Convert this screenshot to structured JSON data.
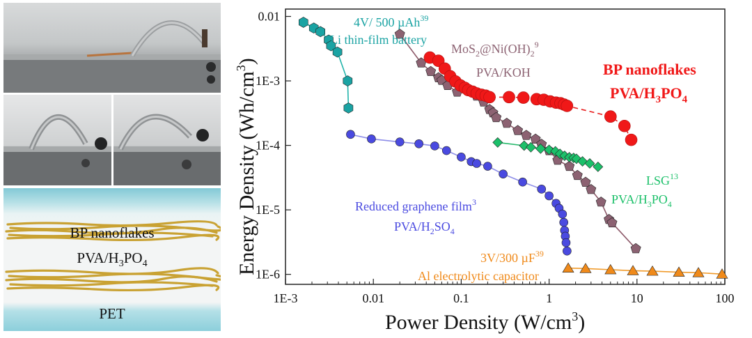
{
  "device": {
    "layer_top": "BP nanoflakes",
    "layer_mid": "PVA/H3PO4",
    "layer_bottom": "PET"
  },
  "chart_data": {
    "type": "scatter",
    "xlabel": "Power Density (W/cm3)",
    "ylabel": "Energy Density (Wh/cm3)",
    "xscale": "log",
    "yscale": "log",
    "xlim": [
      0.001,
      100
    ],
    "ylim": [
      7e-07,
      0.013
    ],
    "xticks": [
      {
        "value": 0.001,
        "label": "1E-3"
      },
      {
        "value": 0.01,
        "label": "0.01"
      },
      {
        "value": 0.1,
        "label": "0.1"
      },
      {
        "value": 1,
        "label": "1"
      },
      {
        "value": 10,
        "label": "10"
      },
      {
        "value": 100,
        "label": "100"
      }
    ],
    "yticks": [
      {
        "value": 1e-06,
        "label": "1E-6"
      },
      {
        "value": 1e-05,
        "label": "1E-5"
      },
      {
        "value": 0.0001,
        "label": "1E-4"
      },
      {
        "value": 0.001,
        "label": "1E-3"
      },
      {
        "value": 0.01,
        "label": "0.01"
      }
    ],
    "series": [
      {
        "key": "li",
        "label_lines": [
          "4V/ 500 µAh39",
          "Li thin-film battery"
        ],
        "color": "#1aa3a3",
        "line_color": "#22b3aa",
        "marker": "hexagon",
        "x": [
          0.0016,
          0.0021,
          0.0025,
          0.0031,
          0.0033,
          0.0039,
          0.0051,
          0.0052
        ],
        "y": [
          0.0081,
          0.0066,
          0.0058,
          0.0043,
          0.0035,
          0.0028,
          0.001,
          0.00038
        ]
      },
      {
        "key": "mos2",
        "label_lines": [
          "MoS2@Ni(OH)29",
          "PVA/KOH"
        ],
        "color": "#8c6272",
        "line_color": "#8c5868",
        "marker": "pentagon",
        "x": [
          0.02,
          0.035,
          0.045,
          0.055,
          0.06,
          0.07,
          0.09,
          0.12,
          0.15,
          0.18,
          0.21,
          0.23,
          0.25,
          0.33,
          0.44,
          0.55,
          0.7,
          0.82,
          1.0,
          1.25,
          1.7,
          2.1,
          2.6,
          3.0,
          3.9,
          4.8,
          5.2,
          9.7
        ],
        "y": [
          0.0053,
          0.0019,
          0.0014,
          0.00112,
          0.00102,
          0.00085,
          0.00067,
          0.0007,
          0.00058,
          0.00047,
          0.00036,
          0.00032,
          0.00027,
          0.00022,
          0.00017,
          0.000143,
          0.000125,
          0.000104,
          8.3e-05,
          5.9e-05,
          4.73e-05,
          3.42e-05,
          2.68e-05,
          2.07e-05,
          1.32e-05,
          7.1e-06,
          6.3e-06,
          2.5e-06
        ]
      },
      {
        "key": "bp",
        "label_lines": [
          "BP nanoflakes",
          "PVA/H3PO4"
        ],
        "color": "#f01818",
        "line_color": "#e81e1e",
        "marker": "circle",
        "x": [
          0.044,
          0.055,
          0.065,
          0.075,
          0.086,
          0.098,
          0.11,
          0.12,
          0.135,
          0.15,
          0.17,
          0.19,
          0.21,
          0.35,
          0.51,
          0.72,
          0.87,
          1.03,
          1.2,
          1.35,
          1.48,
          1.6,
          5.0,
          7.2,
          8.6
        ],
        "y": [
          0.0023,
          0.00205,
          0.00155,
          0.00118,
          0.00098,
          0.00085,
          0.00078,
          0.00072,
          0.00068,
          0.00064,
          0.00061,
          0.00059,
          0.00056,
          0.00056,
          0.00055,
          0.00052,
          0.00051,
          0.00048,
          0.00046,
          0.00045,
          0.00043,
          0.00041,
          0.00028,
          0.0002,
          0.000122
        ]
      },
      {
        "key": "lsg",
        "label_lines": [
          "LSG13",
          "PVA/H3PO4"
        ],
        "color": "#1cc06a",
        "line_color": "#24b86a",
        "marker": "diamond",
        "x": [
          0.26,
          0.52,
          0.62,
          0.8,
          1.0,
          1.18,
          1.33,
          1.5,
          1.7,
          1.9,
          2.05,
          2.4,
          2.9,
          3.6
        ],
        "y": [
          0.000111,
          9.9e-05,
          9.35e-05,
          8.9e-05,
          8.55e-05,
          8.1e-05,
          7.4e-05,
          6.9e-05,
          6.55e-05,
          6.4e-05,
          6.2e-05,
          5.65e-05,
          5.25e-05,
          4.65e-05
        ]
      },
      {
        "key": "rgo",
        "label_lines": [
          "Reduced graphene film3",
          "PVA/H2SO4"
        ],
        "color": "#4a4ae0",
        "line_color": "#8c8ce8",
        "marker": "circle-sm",
        "x": [
          0.0055,
          0.0095,
          0.02,
          0.033,
          0.05,
          0.068,
          0.1,
          0.13,
          0.15,
          0.2,
          0.3,
          0.5,
          0.82,
          1.0,
          1.2,
          1.3,
          1.42,
          1.47,
          1.5,
          1.53,
          1.56,
          1.6
        ],
        "y": [
          0.000148,
          0.000126,
          0.000113,
          0.000106,
          9.8e-05,
          8.3e-05,
          6.6e-05,
          5.6e-05,
          5.25e-05,
          4.75e-05,
          3.6e-05,
          2.7e-05,
          2.1e-05,
          1.65e-05,
          1.26e-05,
          1.06e-05,
          8.6e-06,
          6.4e-06,
          4.8e-06,
          3.9e-06,
          3.1e-06,
          2.3e-06
        ]
      },
      {
        "key": "al",
        "label_lines": [
          "3V/300 µF39",
          "Al electrolytic capacitor"
        ],
        "color": "#f08a1a",
        "line_color": "#f09a2a",
        "marker": "triangle",
        "x": [
          1.65,
          2.6,
          5.0,
          9.0,
          15.0,
          30.0,
          50.0,
          93.0
        ],
        "y": [
          1.25e-06,
          1.23e-06,
          1.18e-06,
          1.14e-06,
          1.12e-06,
          1.08e-06,
          1.06e-06,
          1.01e-06
        ]
      }
    ]
  }
}
